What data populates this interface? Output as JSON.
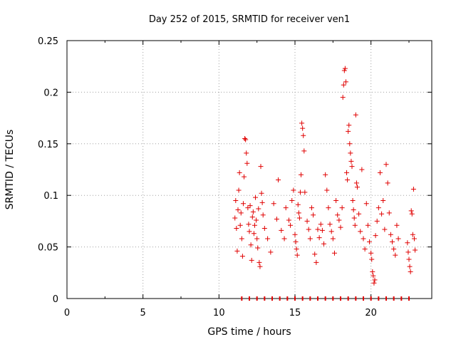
{
  "chart_data": {
    "type": "scatter",
    "title": "Day 252 of 2015, SRMTID for receiver ven1",
    "xlabel": "GPS time / hours",
    "ylabel": "SRMTID / TECUs",
    "xlim": [
      0,
      24
    ],
    "ylim": [
      0,
      0.25
    ],
    "grid": true,
    "marker": "+",
    "marker_color": "#e00000",
    "x_ticks": [
      0,
      5,
      10,
      15,
      20
    ],
    "x_tick_labels": [
      "0",
      "5",
      "10",
      "15",
      "20"
    ],
    "y_ticks": [
      0,
      0.05,
      0.1,
      0.15,
      0.2,
      0.25
    ],
    "y_tick_labels": [
      "0",
      "0.05",
      "0.1",
      "0.15",
      "0.2",
      "0.25"
    ],
    "series": [
      {
        "name": "ven1",
        "points": [
          [
            11.05,
            0.078
          ],
          [
            11.1,
            0.095
          ],
          [
            11.15,
            0.068
          ],
          [
            11.2,
            0.046
          ],
          [
            11.25,
            0.086
          ],
          [
            11.3,
            0.105
          ],
          [
            11.35,
            0.122
          ],
          [
            11.4,
            0.071
          ],
          [
            11.45,
            0.083
          ],
          [
            11.5,
            0.058
          ],
          [
            11.55,
            0.041
          ],
          [
            11.6,
            0.092
          ],
          [
            11.65,
            0.118
          ],
          [
            11.7,
            0.155
          ],
          [
            11.75,
            0.154
          ],
          [
            11.8,
            0.141
          ],
          [
            11.85,
            0.131
          ],
          [
            11.9,
            0.088
          ],
          [
            11.95,
            0.072
          ],
          [
            12.0,
            0.065
          ],
          [
            12.05,
            0.09
          ],
          [
            12.1,
            0.052
          ],
          [
            12.15,
            0.037
          ],
          [
            12.2,
            0.079
          ],
          [
            12.25,
            0.084
          ],
          [
            12.3,
            0.063
          ],
          [
            12.35,
            0.071
          ],
          [
            12.4,
            0.098
          ],
          [
            12.45,
            0.076
          ],
          [
            12.5,
            0.058
          ],
          [
            12.55,
            0.049
          ],
          [
            12.6,
            0.087
          ],
          [
            12.65,
            0.035
          ],
          [
            12.7,
            0.031
          ],
          [
            12.75,
            0.128
          ],
          [
            12.8,
            0.102
          ],
          [
            12.85,
            0.093
          ],
          [
            12.9,
            0.081
          ],
          [
            13.0,
            0.068
          ],
          [
            13.2,
            0.058
          ],
          [
            13.4,
            0.045
          ],
          [
            13.6,
            0.092
          ],
          [
            13.8,
            0.077
          ],
          [
            13.9,
            0.115
          ],
          [
            14.1,
            0.066
          ],
          [
            14.3,
            0.058
          ],
          [
            14.4,
            0.088
          ],
          [
            14.6,
            0.076
          ],
          [
            14.7,
            0.071
          ],
          [
            14.8,
            0.095
          ],
          [
            14.9,
            0.105
          ],
          [
            15.0,
            0.062
          ],
          [
            15.05,
            0.055
          ],
          [
            15.1,
            0.048
          ],
          [
            15.15,
            0.042
          ],
          [
            15.2,
            0.091
          ],
          [
            15.25,
            0.083
          ],
          [
            15.3,
            0.078
          ],
          [
            15.35,
            0.103
          ],
          [
            15.4,
            0.12
          ],
          [
            15.45,
            0.17
          ],
          [
            15.5,
            0.165
          ],
          [
            15.55,
            0.158
          ],
          [
            15.6,
            0.143
          ],
          [
            15.65,
            0.103
          ],
          [
            15.8,
            0.075
          ],
          [
            15.9,
            0.067
          ],
          [
            16.0,
            0.058
          ],
          [
            16.1,
            0.088
          ],
          [
            16.2,
            0.081
          ],
          [
            16.3,
            0.043
          ],
          [
            16.4,
            0.035
          ],
          [
            16.5,
            0.067
          ],
          [
            16.6,
            0.059
          ],
          [
            16.7,
            0.072
          ],
          [
            16.8,
            0.066
          ],
          [
            16.9,
            0.053
          ],
          [
            17.0,
            0.12
          ],
          [
            17.1,
            0.105
          ],
          [
            17.2,
            0.088
          ],
          [
            17.3,
            0.072
          ],
          [
            17.4,
            0.065
          ],
          [
            17.5,
            0.058
          ],
          [
            17.6,
            0.044
          ],
          [
            17.7,
            0.095
          ],
          [
            17.8,
            0.081
          ],
          [
            17.9,
            0.076
          ],
          [
            18.0,
            0.069
          ],
          [
            18.1,
            0.088
          ],
          [
            18.15,
            0.195
          ],
          [
            18.2,
            0.207
          ],
          [
            18.25,
            0.221
          ],
          [
            18.3,
            0.223
          ],
          [
            18.35,
            0.21
          ],
          [
            18.4,
            0.122
          ],
          [
            18.45,
            0.115
          ],
          [
            18.5,
            0.162
          ],
          [
            18.55,
            0.168
          ],
          [
            18.6,
            0.15
          ],
          [
            18.65,
            0.141
          ],
          [
            18.7,
            0.133
          ],
          [
            18.75,
            0.128
          ],
          [
            18.8,
            0.095
          ],
          [
            18.85,
            0.086
          ],
          [
            18.9,
            0.078
          ],
          [
            18.95,
            0.071
          ],
          [
            19.0,
            0.178
          ],
          [
            19.05,
            0.112
          ],
          [
            19.1,
            0.108
          ],
          [
            19.2,
            0.082
          ],
          [
            19.3,
            0.065
          ],
          [
            19.4,
            0.125
          ],
          [
            19.5,
            0.058
          ],
          [
            19.6,
            0.048
          ],
          [
            19.7,
            0.092
          ],
          [
            19.8,
            0.071
          ],
          [
            19.9,
            0.055
          ],
          [
            20.0,
            0.044
          ],
          [
            20.05,
            0.038
          ],
          [
            20.1,
            0.026
          ],
          [
            20.15,
            0.022
          ],
          [
            20.2,
            0.015
          ],
          [
            20.25,
            0.018
          ],
          [
            20.3,
            0.061
          ],
          [
            20.4,
            0.075
          ],
          [
            20.5,
            0.088
          ],
          [
            20.6,
            0.122
          ],
          [
            20.7,
            0.082
          ],
          [
            20.8,
            0.095
          ],
          [
            20.9,
            0.067
          ],
          [
            21.0,
            0.13
          ],
          [
            21.1,
            0.112
          ],
          [
            21.2,
            0.083
          ],
          [
            21.3,
            0.062
          ],
          [
            21.4,
            0.055
          ],
          [
            21.5,
            0.048
          ],
          [
            21.6,
            0.042
          ],
          [
            21.7,
            0.071
          ],
          [
            21.8,
            0.058
          ],
          [
            22.4,
            0.054
          ],
          [
            22.45,
            0.045
          ],
          [
            22.5,
            0.038
          ],
          [
            22.55,
            0.031
          ],
          [
            22.6,
            0.026
          ],
          [
            22.65,
            0.085
          ],
          [
            22.7,
            0.082
          ],
          [
            22.75,
            0.062
          ],
          [
            22.8,
            0.106
          ],
          [
            22.85,
            0.058
          ],
          [
            22.9,
            0.047
          ],
          [
            11.5,
            0.0
          ],
          [
            12.0,
            0.0
          ],
          [
            12.5,
            0.0
          ],
          [
            13.0,
            0.0
          ],
          [
            13.5,
            0.0
          ],
          [
            14.0,
            0.0
          ],
          [
            14.5,
            0.0
          ],
          [
            15.0,
            0.0
          ],
          [
            15.5,
            0.0
          ],
          [
            16.0,
            0.0
          ],
          [
            16.5,
            0.0
          ],
          [
            17.0,
            0.0
          ],
          [
            17.5,
            0.0
          ],
          [
            18.0,
            0.0
          ],
          [
            18.5,
            0.0
          ],
          [
            19.0,
            0.0
          ],
          [
            19.5,
            0.0
          ],
          [
            20.0,
            0.0
          ],
          [
            20.5,
            0.0
          ],
          [
            21.0,
            0.0
          ],
          [
            21.5,
            0.0
          ],
          [
            22.0,
            0.0
          ],
          [
            22.5,
            0.0
          ]
        ]
      }
    ]
  }
}
